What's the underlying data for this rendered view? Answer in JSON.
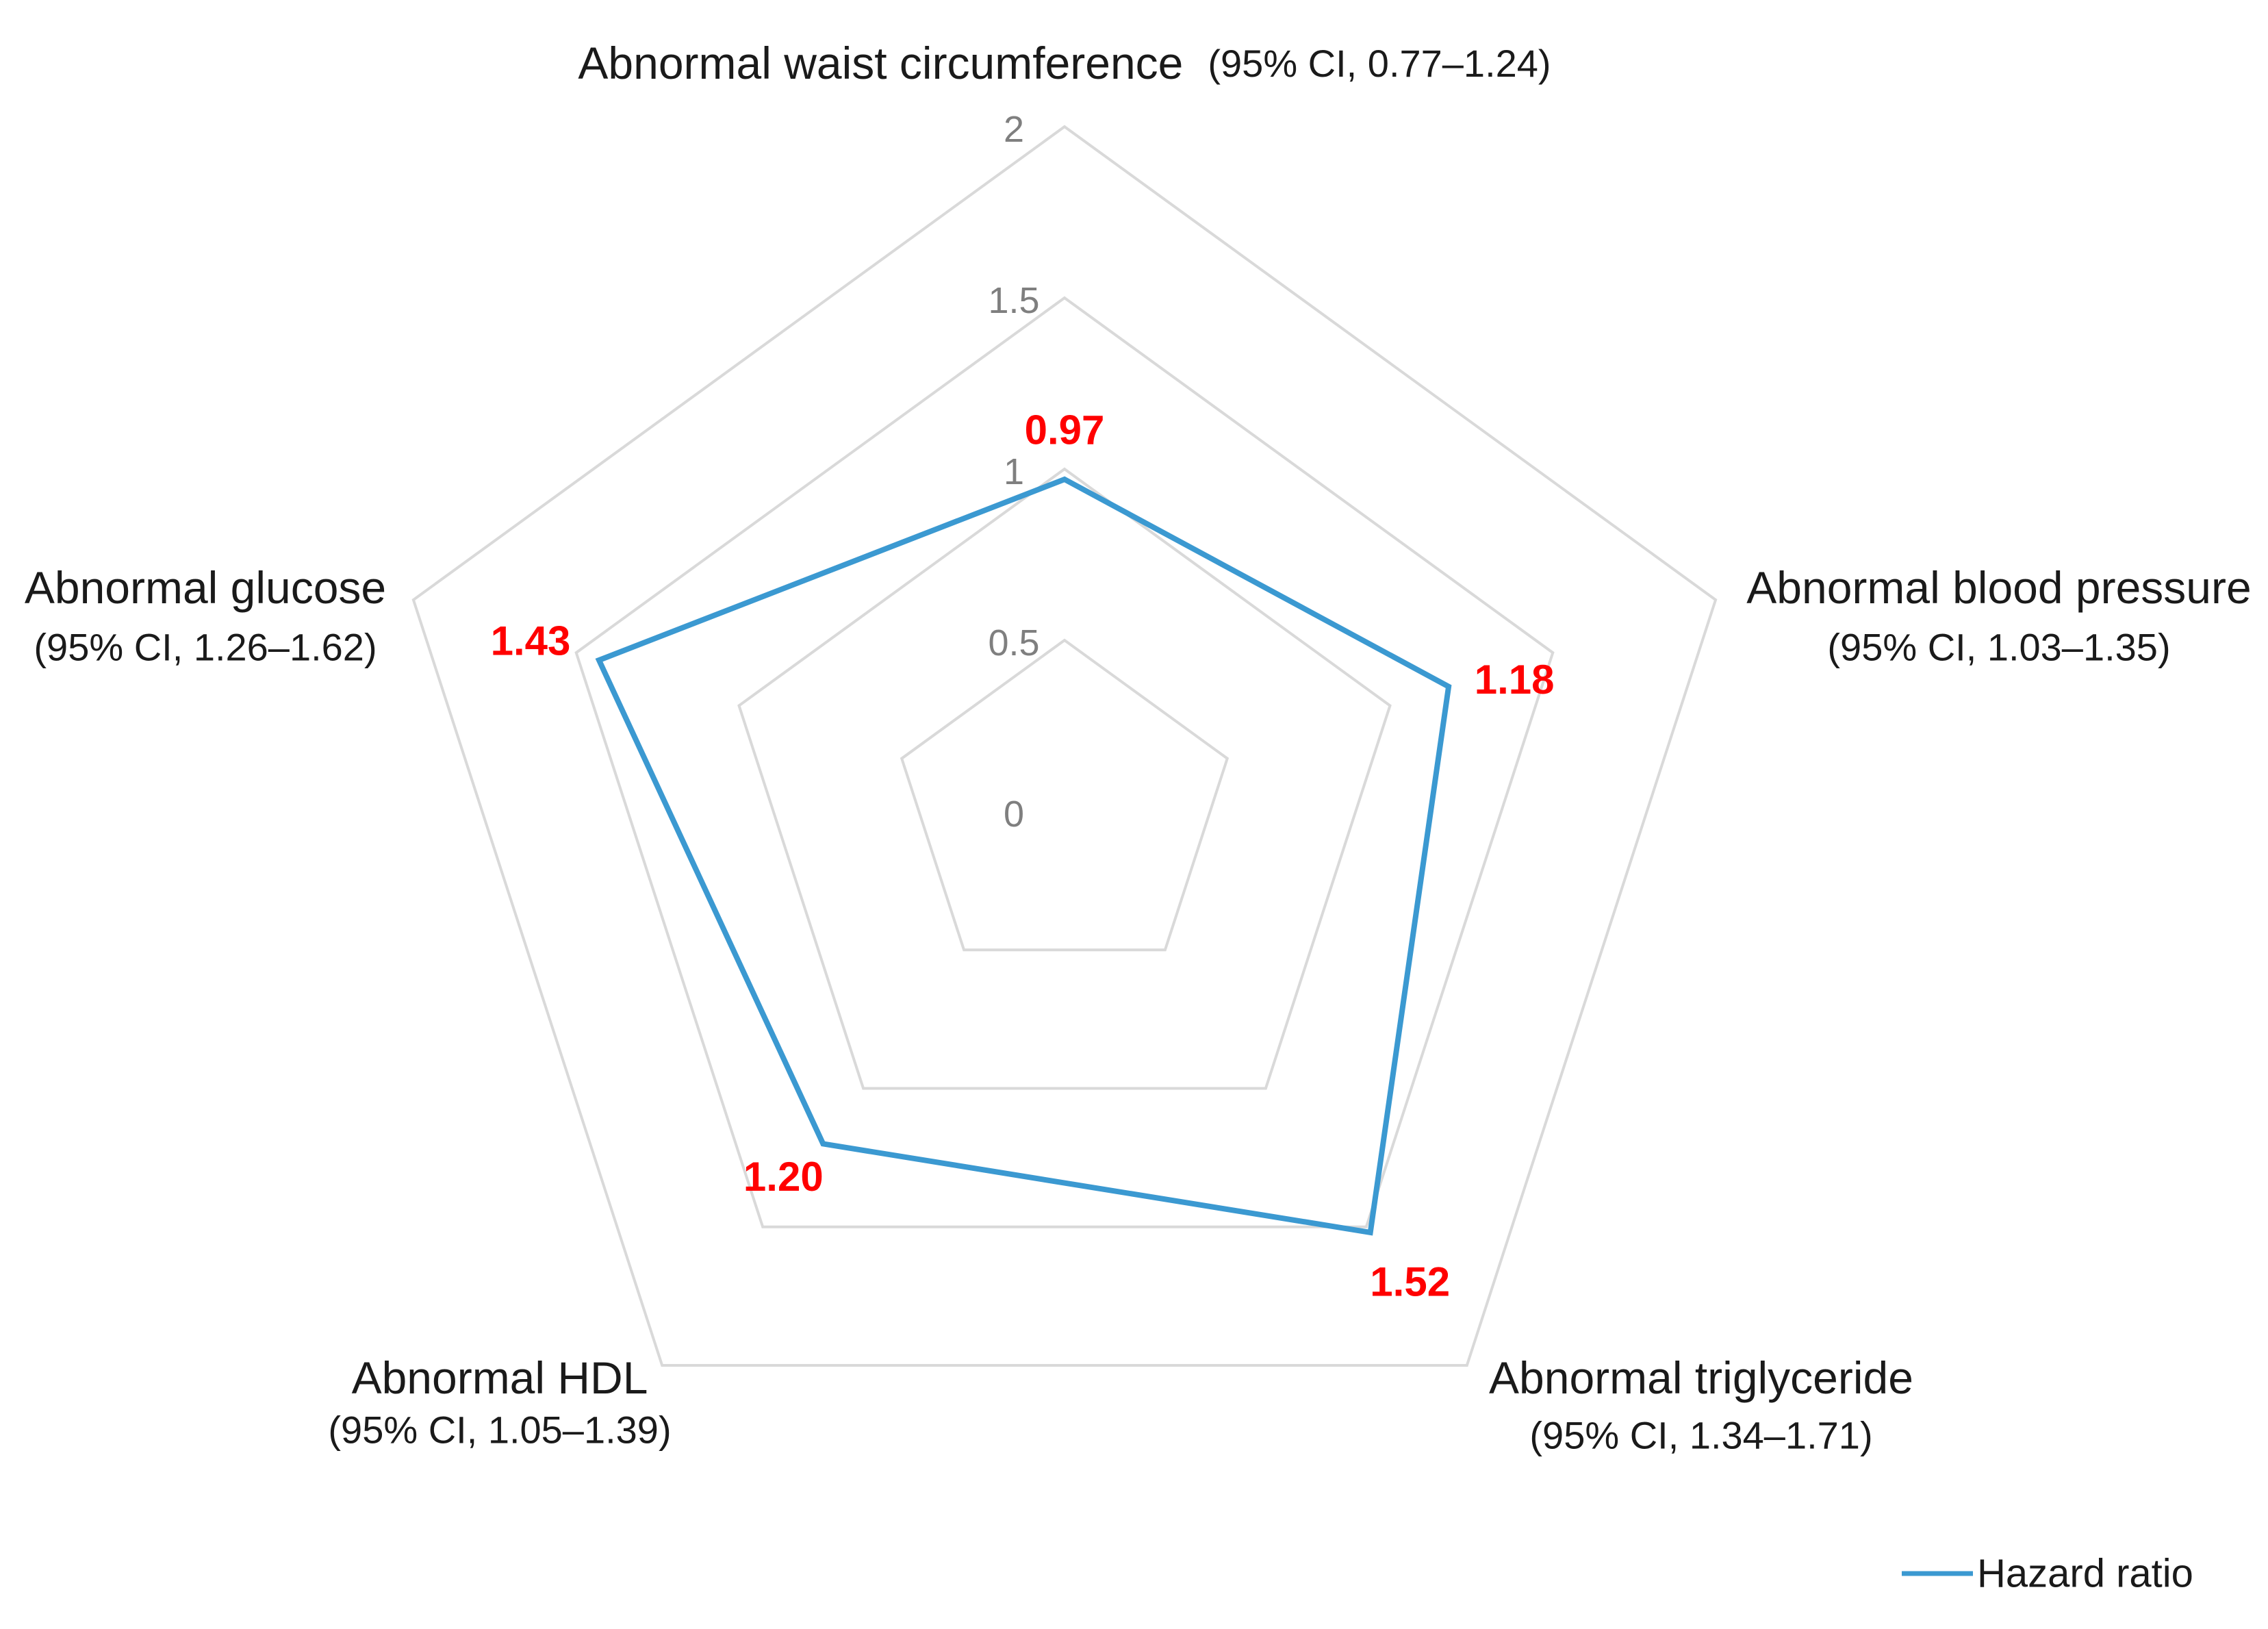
{
  "chart_data": {
    "type": "radar",
    "title": "",
    "axes": [
      {
        "name": "Abnormal waist circumference",
        "ci": "(95% CI, 0.77–1.24)"
      },
      {
        "name": "Abnormal blood pressure",
        "ci": "(95% CI, 1.03–1.35)"
      },
      {
        "name": "Abnormal triglyceride",
        "ci": "(95% CI, 1.34–1.71)"
      },
      {
        "name": "Abnormal HDL",
        "ci": "(95% CI, 1.05–1.39)"
      },
      {
        "name": "Abnormal glucose",
        "ci": "(95% CI, 1.26–1.62)"
      }
    ],
    "series": [
      {
        "name": "Hazard ratio",
        "values": [
          0.97,
          1.18,
          1.52,
          1.2,
          1.43
        ],
        "value_labels": [
          "0.97",
          "1.18",
          "1.52",
          "1.20",
          "1.43"
        ]
      }
    ],
    "radial_ticks": [
      "0",
      "0.5",
      "1",
      "1.5",
      "2"
    ],
    "radial_tick_values": [
      0,
      0.5,
      1,
      1.5,
      2
    ],
    "rmax": 2,
    "grid": true,
    "legend": "bottom-right",
    "colors": {
      "series": "#3b99d1",
      "data_labels": "#ff0000",
      "grid": "#d9d9d9"
    }
  }
}
